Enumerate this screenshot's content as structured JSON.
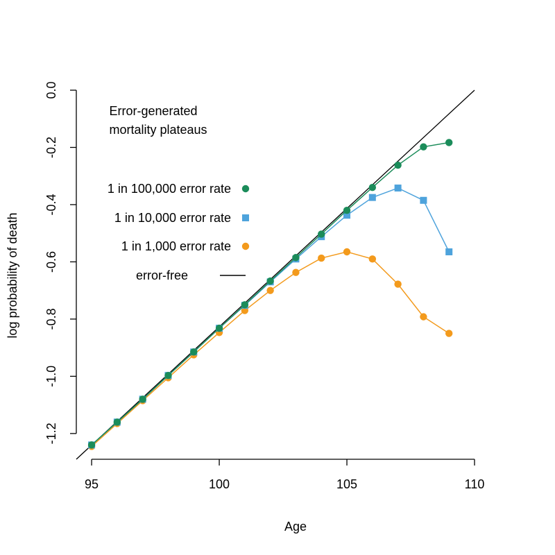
{
  "chart_data": {
    "type": "line",
    "title": "",
    "xlabel": "Age",
    "ylabel": "log probability of death",
    "xlim": [
      94.4,
      110
    ],
    "ylim": [
      -1.29,
      0.0
    ],
    "x_ticks": [
      95,
      100,
      105,
      110
    ],
    "y_ticks": [
      0.0,
      -0.2,
      -0.4,
      -0.6,
      -0.8,
      -1.0,
      -1.2
    ],
    "y_tick_labels": [
      "0.0",
      "-0.2",
      "-0.4",
      "-0.6",
      "-0.8",
      "-1.0",
      "-1.2"
    ],
    "grid": false,
    "legend_position": "left-center",
    "annotation": [
      "Error-generated",
      "mortality plateaus"
    ],
    "reference_line": {
      "name": "error-free",
      "color": "#000000",
      "x": [
        94.4,
        110
      ],
      "y": [
        -1.29,
        0.0
      ]
    },
    "x": [
      95,
      96,
      97,
      98,
      99,
      100,
      101,
      102,
      103,
      104,
      105,
      106,
      107,
      108,
      109
    ],
    "series": [
      {
        "name": "1 in 100,000 error rate",
        "marker": "circle",
        "color": "#1b8c5a",
        "values": [
          -1.24,
          -1.16,
          -1.08,
          -0.997,
          -0.915,
          -0.832,
          -0.75,
          -0.667,
          -0.585,
          -0.503,
          -0.42,
          -0.34,
          -0.262,
          -0.198,
          -0.183
        ]
      },
      {
        "name": "1 in 10,000 error rate",
        "marker": "square",
        "color": "#4ea3dc",
        "values": [
          -1.24,
          -1.16,
          -1.08,
          -0.997,
          -0.915,
          -0.832,
          -0.752,
          -0.67,
          -0.59,
          -0.512,
          -0.437,
          -0.375,
          -0.342,
          -0.385,
          -0.565
        ]
      },
      {
        "name": "1 in 1,000 error rate",
        "marker": "circle",
        "color": "#f39a1c",
        "values": [
          -1.245,
          -1.165,
          -1.085,
          -1.005,
          -0.925,
          -0.847,
          -0.77,
          -0.7,
          -0.637,
          -0.587,
          -0.565,
          -0.59,
          -0.678,
          -0.792,
          -0.85
        ]
      }
    ]
  }
}
